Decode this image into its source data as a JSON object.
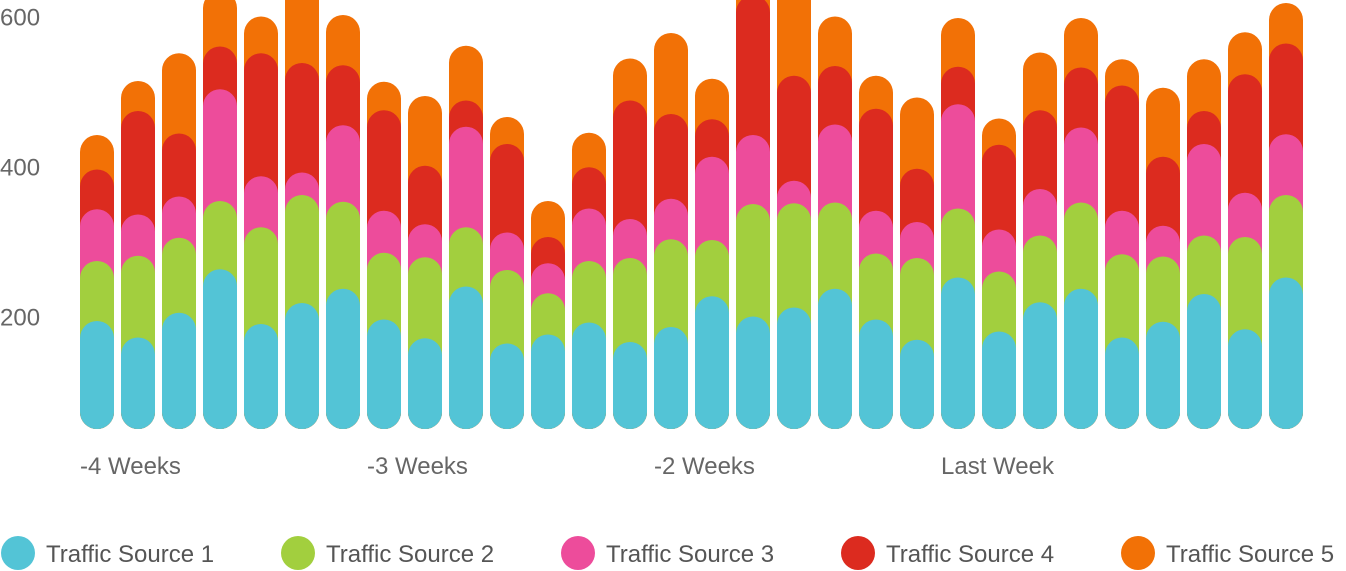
{
  "chart_data": {
    "type": "bar",
    "stacked": true,
    "bar_style": "rounded",
    "ylim": [
      50,
      600
    ],
    "yticks": [
      {
        "value": 600,
        "label": "600"
      },
      {
        "value": 400,
        "label": "400"
      },
      {
        "value": 200,
        "label": "200"
      }
    ],
    "xticks": [
      {
        "bar_index": 0,
        "label": "-4 Weeks"
      },
      {
        "bar_index": 7,
        "label": "-3 Weeks"
      },
      {
        "bar_index": 14,
        "label": "-2 Weeks"
      },
      {
        "bar_index": 21,
        "label": "Last Week"
      }
    ],
    "bar_count": 30,
    "grid": false,
    "legend_position": "bottom",
    "series": [
      {
        "name": "Traffic Source 1",
        "color": "#53C4D6",
        "values": [
          144,
          122,
          155,
          213,
          140,
          168,
          187,
          146,
          121,
          190,
          114,
          126,
          142,
          116,
          136,
          177,
          150,
          162,
          187,
          146,
          119,
          202,
          130,
          169,
          187,
          122,
          143,
          180,
          133,
          202
        ]
      },
      {
        "name": "Traffic Source 2",
        "color": "#A2CF3E",
        "values": [
          80,
          109,
          100,
          91,
          129,
          144,
          116,
          89,
          108,
          79,
          98,
          55,
          82,
          112,
          117,
          75,
          150,
          139,
          115,
          88,
          109,
          92,
          80,
          89,
          115,
          111,
          87,
          78,
          123,
          110
        ]
      },
      {
        "name": "Traffic Source 3",
        "color": "#ED4C9B",
        "values": [
          69,
          55,
          55,
          149,
          68,
          30,
          102,
          56,
          44,
          134,
          50,
          40,
          70,
          52,
          54,
          111,
          92,
          30,
          104,
          57,
          48,
          139,
          56,
          62,
          100,
          58,
          41,
          122,
          59,
          81
        ]
      },
      {
        "name": "Traffic Source 4",
        "color": "#DC2B1F",
        "values": [
          53,
          138,
          84,
          57,
          164,
          146,
          80,
          134,
          78,
          35,
          118,
          35,
          55,
          158,
          113,
          50,
          186,
          140,
          78,
          136,
          71,
          50,
          113,
          105,
          80,
          167,
          92,
          44,
          158,
          121
        ]
      },
      {
        "name": "Traffic Source 5",
        "color": "#F27106",
        "values": [
          46,
          40,
          107,
          74,
          49,
          135,
          67,
          38,
          93,
          73,
          36,
          48,
          46,
          56,
          108,
          54,
          58,
          148,
          66,
          44,
          95,
          65,
          35,
          77,
          66,
          35,
          92,
          69,
          56,
          54
        ]
      }
    ]
  }
}
